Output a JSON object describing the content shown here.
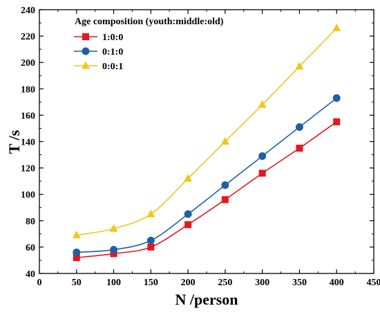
{
  "chart_data": {
    "type": "line",
    "xlabel": "N /person",
    "ylabel": "T /s",
    "xlim": [
      0,
      450
    ],
    "ylim": [
      40,
      240
    ],
    "xticks": [
      0,
      50,
      100,
      150,
      200,
      250,
      300,
      350,
      400,
      450
    ],
    "yticks": [
      40,
      60,
      80,
      100,
      120,
      140,
      160,
      180,
      200,
      220,
      240
    ],
    "legend_title": "Age composition (youth:middle:old)",
    "legend_position": "top-left",
    "grid": false,
    "x": [
      50,
      100,
      150,
      200,
      250,
      300,
      350,
      400
    ],
    "series": [
      {
        "name": "1:0:0",
        "marker": "square",
        "color": "#e8161b",
        "values": [
          52,
          55,
          60,
          77,
          96,
          116,
          135,
          155
        ]
      },
      {
        "name": "0:1:0",
        "marker": "circle",
        "color": "#1f5fa6",
        "values": [
          56,
          58,
          65,
          85,
          107,
          129,
          151,
          173
        ]
      },
      {
        "name": "0:0:1",
        "marker": "triangle",
        "color": "#f2c51b",
        "values": [
          69,
          74,
          85,
          112,
          140,
          168,
          197,
          226
        ]
      }
    ]
  }
}
